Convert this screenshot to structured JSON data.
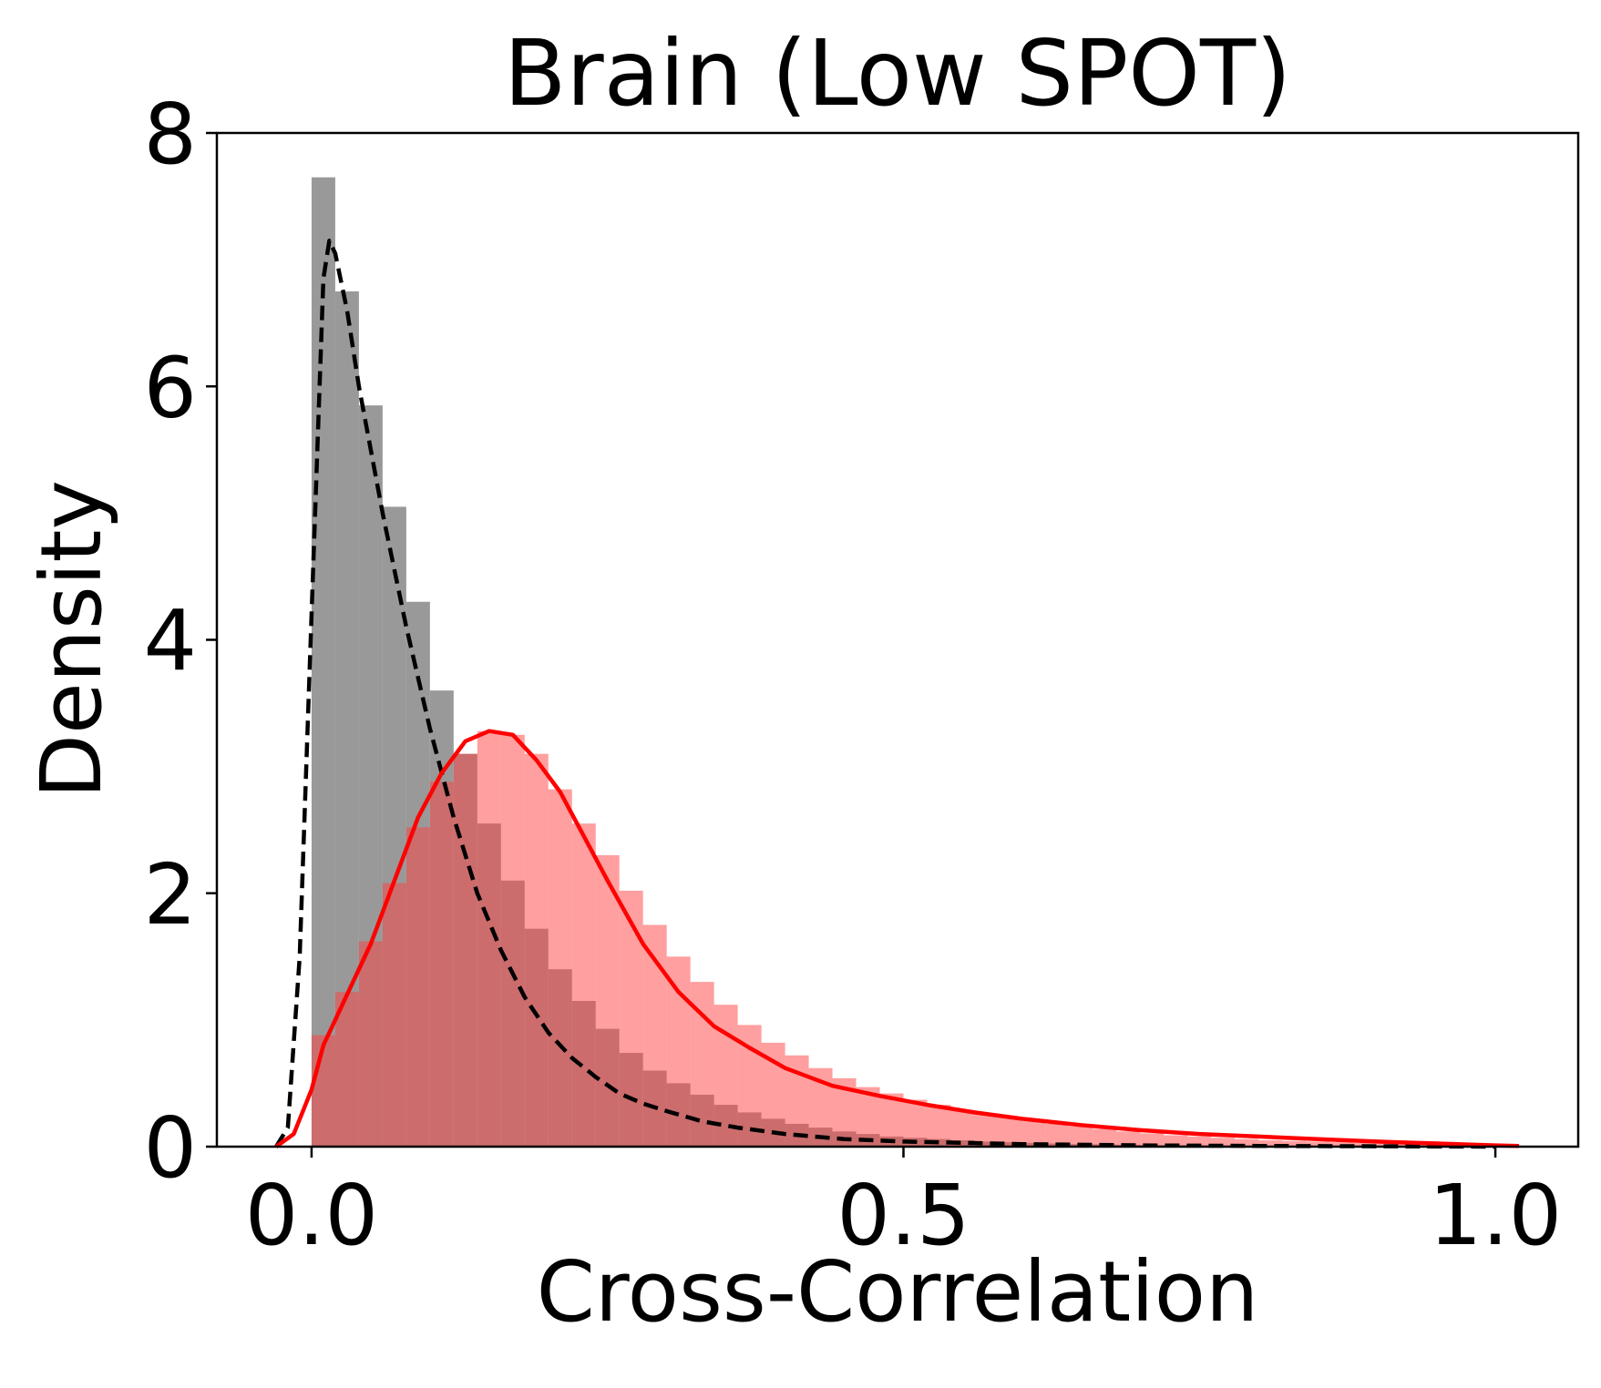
{
  "chart_data": {
    "type": "histogram-kde",
    "title": "Brain (Low SPOT)",
    "xlabel": "Cross-Correlation",
    "ylabel": "Density",
    "xlim": [
      -0.08,
      1.07
    ],
    "ylim": [
      0,
      8
    ],
    "xticks": [
      0.0,
      0.5,
      1.0
    ],
    "xtick_labels": [
      "0.0",
      "0.5",
      "1.0"
    ],
    "yticks": [
      0,
      2,
      4,
      6,
      8
    ],
    "ytick_labels": [
      "0",
      "2",
      "4",
      "6",
      "8"
    ],
    "grid": false,
    "legend": "none",
    "bin_width": 0.02,
    "series": [
      {
        "kind": "histogram",
        "color": "#7f7f7f",
        "opacity": 0.8,
        "bin_start": 0.0,
        "values": [
          7.65,
          6.75,
          5.85,
          5.05,
          4.3,
          3.6,
          3.1,
          2.55,
          2.1,
          1.72,
          1.4,
          1.15,
          0.93,
          0.74,
          0.6,
          0.5,
          0.41,
          0.33,
          0.27,
          0.22,
          0.18,
          0.15,
          0.12,
          0.1,
          0.08,
          0.07,
          0.06,
          0.05,
          0.04,
          0.035,
          0.03,
          0.025,
          0.02,
          0.018,
          0.015,
          0.012,
          0.01,
          0.008,
          0.006,
          0.005,
          0.004,
          0.003,
          0.002,
          0.002,
          0.001,
          0.001,
          0.001,
          0.0,
          0.0,
          0.0
        ]
      },
      {
        "kind": "histogram",
        "color": "#ff4040",
        "opacity": 0.5,
        "bin_start": 0.0,
        "values": [
          0.88,
          1.22,
          1.62,
          2.08,
          2.52,
          2.88,
          3.1,
          3.28,
          3.25,
          3.1,
          2.82,
          2.55,
          2.3,
          2.02,
          1.75,
          1.5,
          1.3,
          1.12,
          0.96,
          0.82,
          0.72,
          0.62,
          0.54,
          0.47,
          0.42,
          0.37,
          0.33,
          0.29,
          0.26,
          0.23,
          0.2,
          0.18,
          0.16,
          0.14,
          0.12,
          0.105,
          0.09,
          0.08,
          0.07,
          0.06,
          0.05,
          0.045,
          0.04,
          0.035,
          0.03,
          0.025,
          0.02,
          0.015,
          0.01,
          0.008,
          0.005
        ]
      },
      {
        "kind": "kde",
        "color": "#000000",
        "style": "dashed",
        "x": [
          -0.03,
          -0.02,
          -0.01,
          0.0,
          0.01,
          0.015,
          0.02,
          0.03,
          0.04,
          0.06,
          0.08,
          0.1,
          0.12,
          0.14,
          0.16,
          0.18,
          0.2,
          0.22,
          0.24,
          0.26,
          0.28,
          0.3,
          0.33,
          0.36,
          0.4,
          0.45,
          0.5,
          0.55,
          0.6,
          0.7,
          0.8,
          0.9,
          1.0
        ],
        "y": [
          0.0,
          0.15,
          1.5,
          4.2,
          6.85,
          7.15,
          7.05,
          6.6,
          6.0,
          5.0,
          4.1,
          3.3,
          2.6,
          2.0,
          1.55,
          1.18,
          0.9,
          0.7,
          0.55,
          0.42,
          0.34,
          0.28,
          0.2,
          0.15,
          0.1,
          0.06,
          0.04,
          0.03,
          0.02,
          0.01,
          0.006,
          0.003,
          0.0
        ]
      },
      {
        "kind": "kde",
        "color": "#ff0000",
        "style": "solid",
        "x": [
          -0.03,
          -0.015,
          0.0,
          0.01,
          0.02,
          0.03,
          0.05,
          0.07,
          0.09,
          0.11,
          0.13,
          0.15,
          0.17,
          0.19,
          0.21,
          0.23,
          0.25,
          0.28,
          0.31,
          0.34,
          0.37,
          0.4,
          0.44,
          0.48,
          0.52,
          0.56,
          0.6,
          0.65,
          0.7,
          0.75,
          0.8,
          0.85,
          0.9,
          0.95,
          1.0,
          1.02
        ],
        "y": [
          0.0,
          0.1,
          0.45,
          0.8,
          1.0,
          1.2,
          1.6,
          2.1,
          2.6,
          2.95,
          3.2,
          3.28,
          3.25,
          3.05,
          2.8,
          2.45,
          2.1,
          1.6,
          1.22,
          0.95,
          0.78,
          0.62,
          0.48,
          0.4,
          0.33,
          0.27,
          0.22,
          0.17,
          0.13,
          0.1,
          0.08,
          0.06,
          0.04,
          0.025,
          0.01,
          0.005
        ]
      }
    ]
  }
}
